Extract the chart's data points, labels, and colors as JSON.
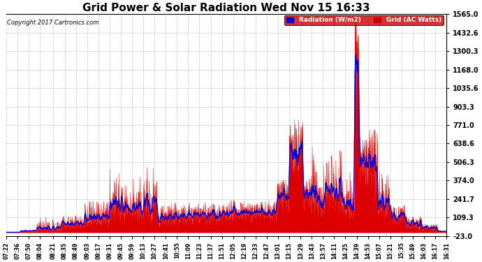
{
  "title": "Grid Power & Solar Radiation Wed Nov 15 16:33",
  "copyright": "Copyright 2017 Cartronics.com",
  "legend_radiation": "Radiation (W/m2)",
  "legend_grid": "Grid (AC Watts)",
  "yticks": [
    -23.0,
    109.3,
    241.7,
    374.0,
    506.3,
    638.6,
    771.0,
    903.3,
    1035.6,
    1168.0,
    1300.3,
    1432.6,
    1565.0
  ],
  "ymin": -23.0,
  "ymax": 1565.0,
  "background_color": "#ffffff",
  "grid_color": "#999999",
  "radiation_color": "#0000dd",
  "fill_color": "#dd0000",
  "title_fontsize": 11,
  "tick_fontsize": 7,
  "xtick_labels": [
    "07:22",
    "07:36",
    "07:50",
    "08:04",
    "08:21",
    "08:35",
    "08:49",
    "09:03",
    "09:17",
    "09:31",
    "09:45",
    "09:59",
    "10:13",
    "10:27",
    "10:41",
    "10:55",
    "11:09",
    "11:23",
    "11:37",
    "11:51",
    "12:05",
    "12:19",
    "12:33",
    "12:47",
    "13:01",
    "13:15",
    "13:29",
    "13:43",
    "13:57",
    "14:11",
    "14:25",
    "14:39",
    "14:53",
    "15:07",
    "15:21",
    "15:35",
    "15:49",
    "16:03",
    "16:17",
    "16:31"
  ]
}
